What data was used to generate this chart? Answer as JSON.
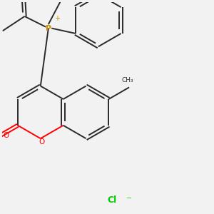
{
  "background_color": "#f2f2f2",
  "bond_color": "#2a2a2a",
  "oxygen_color": "#ff0000",
  "phosphorus_color": "#cc8800",
  "chlorine_color": "#00cc00",
  "line_width": 1.4,
  "p_label": "P",
  "p_charge": "+",
  "o_label": "O",
  "cl_label": "Cl",
  "cl_charge": "-"
}
